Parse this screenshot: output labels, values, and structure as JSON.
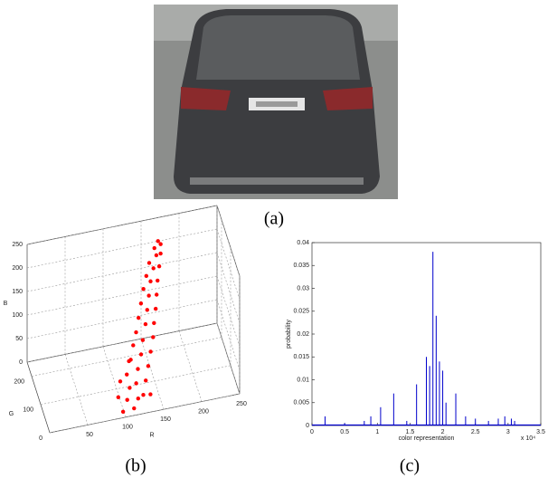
{
  "captions": [
    "(a)",
    "(b)",
    "(c)"
  ],
  "chart_data": [
    {
      "type": "scatter3d",
      "xlabel": "R",
      "ylabel": "G",
      "zlabel": "B",
      "color": "#ff0000",
      "grid": true,
      "xlim": [
        0,
        250
      ],
      "ylim": [
        0,
        250
      ],
      "zlim": [
        0,
        250
      ],
      "xticks": [
        50,
        100,
        150,
        200,
        250
      ],
      "yticks": [
        0,
        100,
        200
      ],
      "zticks": [
        0,
        50,
        100,
        150,
        200,
        250
      ],
      "x": [
        98,
        112,
        120,
        105,
        125,
        110,
        118,
        130,
        108,
        122,
        135,
        115,
        128,
        140,
        120,
        132,
        145,
        125,
        138,
        148,
        130,
        142,
        152,
        135,
        146,
        155,
        140,
        150,
        158,
        145,
        155,
        162,
        150,
        160,
        165,
        158,
        166,
        163,
        100,
        115,
        95,
        135
      ],
      "y": [
        12,
        8,
        30,
        25,
        15,
        40,
        35,
        30,
        55,
        50,
        45,
        70,
        65,
        60,
        85,
        80,
        75,
        95,
        100,
        90,
        110,
        115,
        105,
        125,
        130,
        120,
        140,
        145,
        135,
        150,
        155,
        150,
        160,
        165,
        160,
        170,
        168,
        172,
        60,
        90,
        40,
        20
      ],
      "z": [
        5,
        10,
        15,
        20,
        30,
        35,
        45,
        50,
        55,
        65,
        70,
        75,
        85,
        90,
        95,
        105,
        110,
        115,
        125,
        130,
        135,
        145,
        150,
        155,
        165,
        170,
        175,
        185,
        190,
        195,
        205,
        210,
        215,
        225,
        230,
        238,
        245,
        250,
        40,
        60,
        20,
        25
      ]
    },
    {
      "type": "stem",
      "xlabel": "color representation",
      "ylabel": "probability",
      "x_multiplier": "x 10⁴",
      "color": "#0000cc",
      "xlim": [
        0,
        3.5
      ],
      "ylim": [
        0,
        0.04
      ],
      "xticks": [
        0,
        0.5,
        1,
        1.5,
        2,
        2.5,
        3,
        3.5
      ],
      "yticks": [
        0,
        0.005,
        0.01,
        0.015,
        0.02,
        0.025,
        0.03,
        0.035,
        0.04
      ],
      "x": [
        0.2,
        0.5,
        0.8,
        0.9,
        1.05,
        1.25,
        1.45,
        1.6,
        1.75,
        1.8,
        1.85,
        1.9,
        1.95,
        2.0,
        2.05,
        2.2,
        2.35,
        2.5,
        2.7,
        2.85,
        2.95,
        3.05,
        3.1
      ],
      "values": [
        0.002,
        0.0005,
        0.001,
        0.002,
        0.004,
        0.007,
        0.001,
        0.009,
        0.015,
        0.013,
        0.038,
        0.024,
        0.014,
        0.012,
        0.005,
        0.007,
        0.002,
        0.0015,
        0.001,
        0.0015,
        0.002,
        0.0015,
        0.001
      ]
    }
  ]
}
